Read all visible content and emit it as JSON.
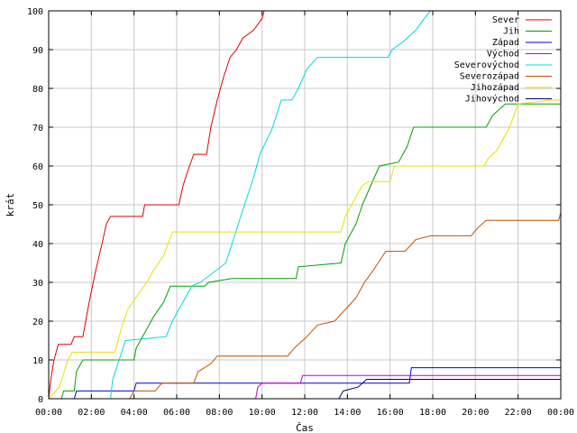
{
  "chart_data": {
    "type": "line",
    "title": "",
    "xlabel": "Čas",
    "ylabel": "krát",
    "xlim": [
      0,
      24
    ],
    "ylim": [
      0,
      100
    ],
    "x_unit": "hours",
    "x_tick_labels": [
      "00:00",
      "02:00",
      "04:00",
      "06:00",
      "08:00",
      "10:00",
      "12:00",
      "14:00",
      "16:00",
      "18:00",
      "20:00",
      "22:00",
      "00:00"
    ],
    "y_ticks": [
      0,
      10,
      20,
      30,
      40,
      50,
      60,
      70,
      80,
      90,
      100
    ],
    "grid": true,
    "legend_position": "top-right",
    "series": [
      {
        "name": "Sever",
        "color": "#e00000",
        "points": [
          [
            0,
            0
          ],
          [
            0.1,
            5
          ],
          [
            0.25,
            10
          ],
          [
            0.45,
            14
          ],
          [
            1.05,
            14
          ],
          [
            1.2,
            16
          ],
          [
            1.6,
            16
          ],
          [
            1.9,
            25
          ],
          [
            2.2,
            33
          ],
          [
            2.5,
            40
          ],
          [
            2.7,
            45
          ],
          [
            2.9,
            47
          ],
          [
            4.4,
            47
          ],
          [
            4.5,
            50
          ],
          [
            6.1,
            50
          ],
          [
            6.3,
            55
          ],
          [
            6.6,
            60
          ],
          [
            6.8,
            63
          ],
          [
            7.4,
            63
          ],
          [
            7.6,
            70
          ],
          [
            7.9,
            77
          ],
          [
            8.2,
            83
          ],
          [
            8.5,
            88
          ],
          [
            8.8,
            90
          ],
          [
            9.1,
            93
          ],
          [
            9.6,
            95
          ],
          [
            10.0,
            98
          ],
          [
            10.1,
            100
          ]
        ]
      },
      {
        "name": "Jih",
        "color": "#00a000",
        "points": [
          [
            0,
            0
          ],
          [
            0.6,
            0
          ],
          [
            0.7,
            2
          ],
          [
            1.2,
            2
          ],
          [
            1.3,
            7
          ],
          [
            1.6,
            10
          ],
          [
            4.0,
            10
          ],
          [
            4.1,
            13
          ],
          [
            4.6,
            18
          ],
          [
            4.9,
            21
          ],
          [
            5.4,
            25
          ],
          [
            5.7,
            29
          ],
          [
            7.3,
            29
          ],
          [
            7.5,
            30
          ],
          [
            8.6,
            31
          ],
          [
            11.6,
            31
          ],
          [
            11.7,
            34
          ],
          [
            13.7,
            35
          ],
          [
            13.9,
            40
          ],
          [
            14.4,
            45
          ],
          [
            14.7,
            50
          ],
          [
            15.1,
            55
          ],
          [
            15.5,
            60
          ],
          [
            16.4,
            61
          ],
          [
            16.8,
            65
          ],
          [
            17.1,
            70
          ],
          [
            20.5,
            70
          ],
          [
            20.8,
            73
          ],
          [
            21.4,
            76
          ],
          [
            24.0,
            76
          ]
        ]
      },
      {
        "name": "Západ",
        "color": "#0000e0",
        "points": [
          [
            0,
            0
          ],
          [
            1.2,
            0
          ],
          [
            1.3,
            2
          ],
          [
            4.0,
            2
          ],
          [
            4.1,
            4
          ],
          [
            6.8,
            4
          ],
          [
            7.0,
            4
          ],
          [
            16.9,
            4
          ],
          [
            17.0,
            8
          ],
          [
            24.0,
            8
          ]
        ]
      },
      {
        "name": "Východ",
        "color": "#c000c0",
        "points": [
          [
            0,
            0
          ],
          [
            9.7,
            0
          ],
          [
            9.8,
            3
          ],
          [
            10.0,
            4
          ],
          [
            11.8,
            4
          ],
          [
            11.9,
            6
          ],
          [
            24.0,
            6
          ]
        ]
      },
      {
        "name": "Severovýchod",
        "color": "#00d8e0",
        "points": [
          [
            0,
            0
          ],
          [
            2.9,
            0
          ],
          [
            3.0,
            5
          ],
          [
            3.3,
            10
          ],
          [
            3.6,
            15
          ],
          [
            5.5,
            16
          ],
          [
            5.8,
            20
          ],
          [
            6.3,
            25
          ],
          [
            6.7,
            29
          ],
          [
            7.1,
            30
          ],
          [
            7.6,
            32
          ],
          [
            8.3,
            35
          ],
          [
            8.6,
            40
          ],
          [
            9.0,
            47
          ],
          [
            9.3,
            52
          ],
          [
            9.6,
            57
          ],
          [
            9.9,
            63
          ],
          [
            10.5,
            70
          ],
          [
            10.9,
            77
          ],
          [
            11.4,
            77
          ],
          [
            11.7,
            80
          ],
          [
            12.1,
            85
          ],
          [
            12.6,
            88
          ],
          [
            15.9,
            88
          ],
          [
            16.1,
            90
          ],
          [
            16.6,
            92
          ],
          [
            17.2,
            95
          ],
          [
            17.6,
            98
          ],
          [
            17.9,
            100
          ]
        ]
      },
      {
        "name": "Severozápad",
        "color": "#c05000",
        "points": [
          [
            0,
            0
          ],
          [
            3.8,
            0
          ],
          [
            4.0,
            2
          ],
          [
            5.0,
            2
          ],
          [
            5.3,
            4
          ],
          [
            6.8,
            4
          ],
          [
            7.0,
            7
          ],
          [
            7.6,
            9
          ],
          [
            7.9,
            11
          ],
          [
            11.2,
            11
          ],
          [
            11.5,
            13
          ],
          [
            12.1,
            16
          ],
          [
            12.6,
            19
          ],
          [
            13.4,
            20
          ],
          [
            13.9,
            23
          ],
          [
            14.4,
            26
          ],
          [
            14.8,
            30
          ],
          [
            15.2,
            33
          ],
          [
            15.8,
            38
          ],
          [
            16.7,
            38
          ],
          [
            17.2,
            41
          ],
          [
            17.9,
            42
          ],
          [
            19.8,
            42
          ],
          [
            20.1,
            44
          ],
          [
            20.5,
            46
          ],
          [
            23.9,
            46
          ],
          [
            24.0,
            48
          ]
        ]
      },
      {
        "name": "Jihozápad",
        "color": "#e8e000",
        "points": [
          [
            0,
            0
          ],
          [
            0.5,
            3
          ],
          [
            0.9,
            10
          ],
          [
            1.1,
            12
          ],
          [
            3.1,
            12
          ],
          [
            3.4,
            18
          ],
          [
            3.7,
            23
          ],
          [
            4.2,
            27
          ],
          [
            4.6,
            30
          ],
          [
            4.9,
            33
          ],
          [
            5.4,
            37
          ],
          [
            5.8,
            43
          ],
          [
            13.7,
            43
          ],
          [
            13.9,
            47
          ],
          [
            14.4,
            52
          ],
          [
            14.7,
            55
          ],
          [
            15.0,
            56
          ],
          [
            16.0,
            56
          ],
          [
            16.2,
            60
          ],
          [
            20.4,
            60
          ],
          [
            20.6,
            62
          ],
          [
            21.0,
            64
          ],
          [
            21.6,
            70
          ],
          [
            22.0,
            76
          ],
          [
            23.5,
            77
          ],
          [
            24.0,
            77
          ]
        ]
      },
      {
        "name": "Jihovýchod",
        "color": "#000080",
        "points": [
          [
            0,
            0
          ],
          [
            13.6,
            0
          ],
          [
            13.8,
            2
          ],
          [
            14.5,
            3
          ],
          [
            14.9,
            5
          ],
          [
            24.0,
            5
          ]
        ]
      }
    ]
  }
}
